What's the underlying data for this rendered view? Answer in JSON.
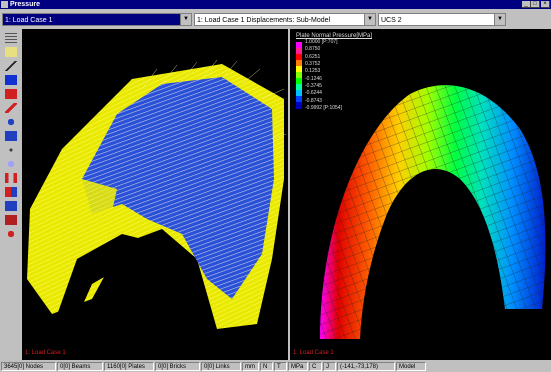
{
  "window": {
    "title": "Pressure"
  },
  "toolbar": {
    "load_case_combo": "1: Load Case 1",
    "displacements_combo": "1: Load Case 1   Displacements: Sub-Model",
    "ucs_combo": "UCS 2"
  },
  "left_viewport": {
    "label": "1: Load Case 1"
  },
  "right_viewport": {
    "label": "1: Load Case 1",
    "legend": {
      "title": "Plate Normal Pressure[MPa]",
      "values": [
        "1.0000 [P:707]",
        "0.8750",
        "0.6251",
        "0.3752",
        "0.1253",
        "-0.1246",
        "-0.3745",
        "-0.6244",
        "-0.8743",
        "-0.9992 [P:1054]"
      ],
      "colors": [
        "#ff00ff",
        "#ff2090",
        "#ff0000",
        "#ff8000",
        "#ffff00",
        "#80ff00",
        "#00ff00",
        "#00ffa0",
        "#00c0ff",
        "#0040ff",
        "#0000c0"
      ]
    }
  },
  "statusbar": {
    "nodes": "3645[0] Nodes",
    "beams": "0[0] Beams",
    "plates": "1160[0] Plates",
    "bricks": "0[0] Bricks",
    "links": "0[0] Links",
    "unit_mm": "mm",
    "unit_n": "N",
    "unit_t": "T",
    "unit_mpa": "MPa",
    "unit_c": "C",
    "unit_j": "J",
    "coords": "(-141,-73,178)",
    "mode": "Model"
  }
}
